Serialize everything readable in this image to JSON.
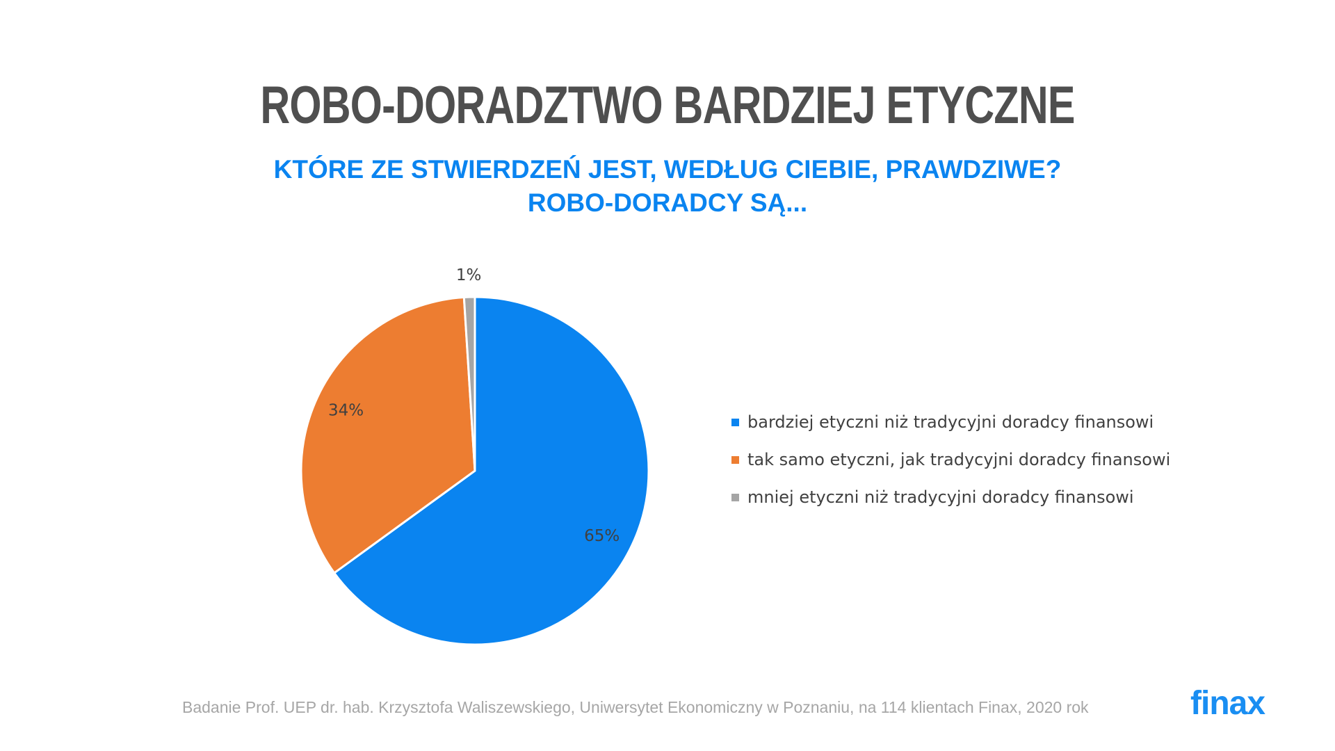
{
  "title": "ROBO-DORADZTWO BARDZIEJ ETYCZNE",
  "subtitle_line1": "KTÓRE ZE STWIERDZEŃ JEST, WEDŁUG CIEBIE, PRAWDZIWE?",
  "subtitle_line2": "ROBO-DORADCY SĄ...",
  "chart_data": {
    "type": "pie",
    "title": "",
    "categories": [
      "bardziej etyczni niż tradycyjni doradcy finansowi",
      "tak samo etyczni, jak tradycyjni doradcy finansowi",
      "mniej etyczni niż tradycyjni doradcy finansowi"
    ],
    "values": [
      65,
      34,
      1
    ],
    "data_labels": [
      "65%",
      "34%",
      "1%"
    ],
    "colors": [
      "#0a84f0",
      "#ed7d31",
      "#a5a5a5"
    ],
    "legend_position": "right"
  },
  "footer": "Badanie Prof. UEP dr. hab. Krzysztofa Waliszewskiego, Uniwersytet Ekonomiczny w Poznaniu, na 114 klientach Finax, 2020 rok",
  "logo_text": "finax"
}
